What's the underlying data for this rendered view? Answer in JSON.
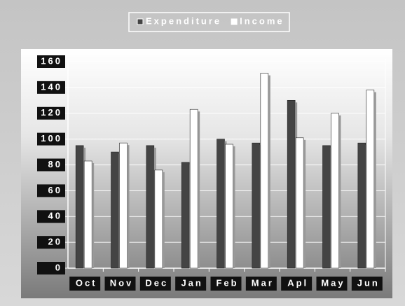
{
  "chart_data": {
    "type": "bar",
    "categories": [
      "Oct",
      "Nov",
      "Dec",
      "Jan",
      "Feb",
      "Mar",
      "Apl",
      "May",
      "Jun"
    ],
    "series": [
      {
        "name": "Expenditure",
        "color": "#444444",
        "values": [
          95,
          90,
          95,
          82,
          100,
          97,
          130,
          95,
          97
        ]
      },
      {
        "name": "Income",
        "color": "#ffffff",
        "values": [
          83,
          97,
          76,
          123,
          96,
          151,
          101,
          120,
          138
        ]
      }
    ],
    "ylim": [
      0,
      160
    ],
    "yticks": [
      0,
      20,
      40,
      60,
      80,
      100,
      120,
      140,
      160
    ],
    "grid": true,
    "legend": "top"
  }
}
